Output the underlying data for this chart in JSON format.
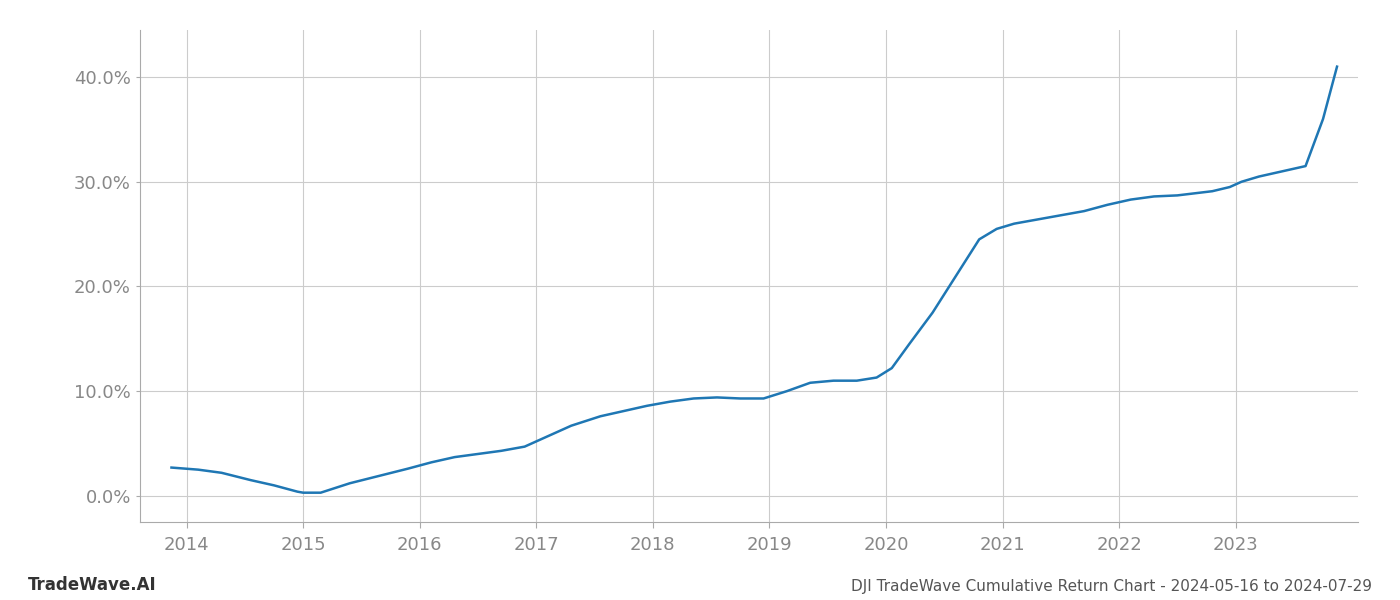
{
  "title": "DJI TradeWave Cumulative Return Chart - 2024-05-16 to 2024-07-29",
  "watermark": "TradeWave.AI",
  "line_color": "#1f77b4",
  "background_color": "#ffffff",
  "grid_color": "#cccccc",
  "x_values": [
    2013.87,
    2014.1,
    2014.3,
    2014.55,
    2014.75,
    2014.95,
    2015.0,
    2015.15,
    2015.4,
    2015.65,
    2015.9,
    2016.1,
    2016.3,
    2016.5,
    2016.7,
    2016.9,
    2017.1,
    2017.3,
    2017.55,
    2017.75,
    2017.95,
    2018.15,
    2018.35,
    2018.55,
    2018.75,
    2018.95,
    2019.15,
    2019.35,
    2019.55,
    2019.75,
    2019.92,
    2020.05,
    2020.2,
    2020.4,
    2020.6,
    2020.8,
    2020.95,
    2021.1,
    2021.3,
    2021.5,
    2021.7,
    2021.9,
    2022.1,
    2022.3,
    2022.5,
    2022.65,
    2022.8,
    2022.95,
    2023.05,
    2023.2,
    2023.4,
    2023.6,
    2023.75,
    2023.87
  ],
  "y_values": [
    0.027,
    0.025,
    0.022,
    0.015,
    0.01,
    0.004,
    0.003,
    0.003,
    0.012,
    0.019,
    0.026,
    0.032,
    0.037,
    0.04,
    0.043,
    0.047,
    0.057,
    0.067,
    0.076,
    0.081,
    0.086,
    0.09,
    0.093,
    0.094,
    0.093,
    0.093,
    0.1,
    0.108,
    0.11,
    0.11,
    0.113,
    0.122,
    0.145,
    0.175,
    0.21,
    0.245,
    0.255,
    0.26,
    0.264,
    0.268,
    0.272,
    0.278,
    0.283,
    0.286,
    0.287,
    0.289,
    0.291,
    0.295,
    0.3,
    0.305,
    0.31,
    0.315,
    0.36,
    0.41
  ],
  "xlim": [
    2013.6,
    2024.05
  ],
  "ylim": [
    -0.025,
    0.445
  ],
  "yticks": [
    0.0,
    0.1,
    0.2,
    0.3,
    0.4
  ],
  "ytick_labels": [
    "0.0%",
    "10.0%",
    "20.0%",
    "30.0%",
    "40.0%"
  ],
  "xticks": [
    2014,
    2015,
    2016,
    2017,
    2018,
    2019,
    2020,
    2021,
    2022,
    2023
  ],
  "xtick_labels": [
    "2014",
    "2015",
    "2016",
    "2017",
    "2018",
    "2019",
    "2020",
    "2021",
    "2022",
    "2023"
  ],
  "title_fontsize": 11,
  "watermark_fontsize": 12,
  "tick_fontsize": 13,
  "line_width": 1.8
}
